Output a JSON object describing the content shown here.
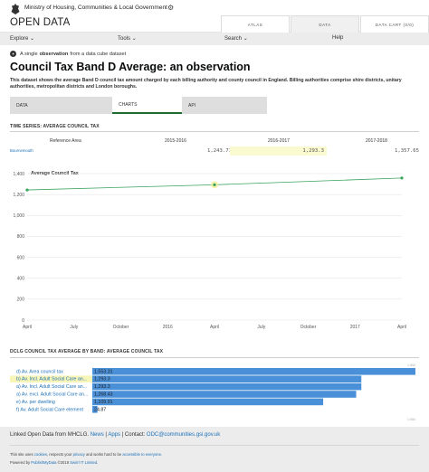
{
  "header": {
    "ministry": "Ministry of Housing, Communities & Local Government",
    "brand": "OPEN DATA",
    "tabs": [
      {
        "label": "ATLAS"
      },
      {
        "label": "DATA"
      },
      {
        "label": "DATA CART (0/0)"
      }
    ]
  },
  "menu": {
    "explore": "Explore",
    "tools": "Tools",
    "search": "Search",
    "help": "Help"
  },
  "notice": {
    "pre": "A single",
    "bold": "observation",
    "post": "from a data cube dataset"
  },
  "page": {
    "title": "Council Tax Band D Average: an observation",
    "description": "This dataset shows the average Band D council tax amount charged by each billing authority and county council in England. Billing authorities comprise shire districts, unitary authorities, metropolitan districts and London boroughs."
  },
  "tabs": [
    {
      "label": "DATA"
    },
    {
      "label": "CHARTS"
    },
    {
      "label": "API"
    }
  ],
  "timeseries": {
    "heading": "TIME SERIES: AVERAGE COUNCIL TAX",
    "ref_header": "Reference Area",
    "columns": [
      "2015-2016",
      "2016-2017",
      "2017-2018"
    ],
    "area": "Bournemouth",
    "values": [
      "1,243.71",
      "1,293.3",
      "1,357.65"
    ]
  },
  "chart_data": [
    {
      "type": "line",
      "title": "Average Council Tax",
      "x": [
        "2015-04",
        "2016-04",
        "2017-04"
      ],
      "y": [
        1243.71,
        1293.3,
        1357.65
      ],
      "highlight_index": 1,
      "ylim": [
        0,
        1400
      ],
      "yticks": [
        "0",
        "200",
        "400",
        "600",
        "800",
        "1,000",
        "1,200",
        "1,400"
      ],
      "xticks": [
        "April",
        "July",
        "October",
        "2016",
        "April",
        "July",
        "October",
        "2017",
        "April"
      ],
      "grid": true,
      "line_color": "#3aa35c"
    },
    {
      "type": "bar",
      "title": "DCLG COUNCIL TAX AVERAGE BY BAND: AVERAGE COUNCIL TAX",
      "categories": [
        "d) Av. Area council tax",
        "b) Av. Incl. Adult Social Care an...",
        "a) Av. Incl. Adult Social Care an...",
        "a) Av. excl. Adult Social Care an...",
        "e) Av. per dwelling",
        "f) Av. Adult Social Care element"
      ],
      "value_labels": [
        "1,553.31",
        "1,293.3",
        "1,293.3",
        "1,268.43",
        "1,109.91",
        "24.87"
      ],
      "values": [
        1553.31,
        1293.3,
        1293.3,
        1268.43,
        1109.91,
        24.87
      ],
      "highlight_index": 1,
      "axis_max_label": "1,554",
      "bar_color": "#4a90d9"
    }
  ],
  "footer": {
    "pre": "Linked Open Data from MHCLG.",
    "news": "News",
    "sep1": "|",
    "apps": "Apps",
    "sep2": "| Contact:",
    "email": "ODC@communities.gsi.gov.uk",
    "line1_a": "This site uses",
    "cookies": "cookies",
    "line1_b": ", respects your",
    "privacy": "privacy",
    "line1_c": "and works hard to be",
    "accessible": "accessible to everyone",
    "line1_d": ".",
    "line2_a": "Powered by",
    "pmd": "PublishMyData",
    "line2_b": "©2018",
    "swirrl": "Swirrl IT Limited",
    "line2_c": "."
  }
}
